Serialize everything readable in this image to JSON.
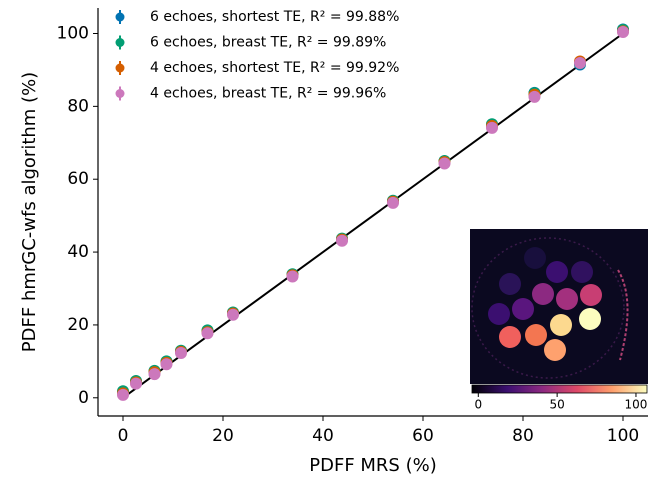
{
  "chart_data": {
    "type": "scatter",
    "xlabel": "PDFF MRS (%)",
    "ylabel": "PDFF hmrGC-wfs algorithm (%)",
    "x": [
      0,
      2.6,
      6.3,
      8.7,
      11.6,
      16.9,
      22.0,
      33.9,
      43.8,
      54.0,
      64.3,
      73.8,
      82.3,
      91.4,
      100
    ],
    "series": [
      {
        "name": "6 echoes, shortest TE, R² = 99.88%",
        "color": "#0173b2",
        "values": [
          1.5,
          4.5,
          7.2,
          9.8,
          12.8,
          18.3,
          23.3,
          33.8,
          43.6,
          54.0,
          64.9,
          75.0,
          83.7,
          91.5,
          101.1
        ]
      },
      {
        "name": "6 echoes, breast TE, R² = 99.89%",
        "color": "#029e73",
        "values": [
          1.8,
          4.6,
          7.4,
          10.0,
          12.9,
          18.5,
          23.4,
          33.9,
          43.7,
          54.1,
          65.0,
          75.1,
          83.6,
          91.8,
          101.0
        ]
      },
      {
        "name": "4 echoes, shortest TE, R² = 99.92%",
        "color": "#d55e00",
        "values": [
          1.2,
          4.2,
          7.0,
          9.6,
          12.6,
          18.0,
          23.1,
          33.6,
          43.4,
          53.8,
          64.7,
          74.6,
          83.2,
          92.3,
          100.6
        ]
      },
      {
        "name": "4 echoes, breast TE, R² = 99.96%",
        "color": "#cc78bc",
        "values": [
          0.8,
          3.9,
          6.5,
          9.2,
          12.3,
          17.7,
          22.8,
          33.3,
          43.1,
          53.5,
          64.3,
          74.1,
          82.6,
          91.9,
          100.4
        ]
      }
    ],
    "identity_line": {
      "x": [
        0,
        100
      ],
      "y": [
        0,
        100
      ],
      "color": "#000000"
    },
    "xlim": [
      -5,
      105
    ],
    "ylim": [
      -5,
      107
    ],
    "xticks": [
      0,
      20,
      40,
      60,
      80,
      100
    ],
    "yticks": [
      0,
      20,
      40,
      60,
      80,
      100
    ],
    "legend": "upper left",
    "colorbar": {
      "clim": [
        -4,
        107
      ],
      "ticks": [
        0,
        50,
        100
      ]
    }
  }
}
